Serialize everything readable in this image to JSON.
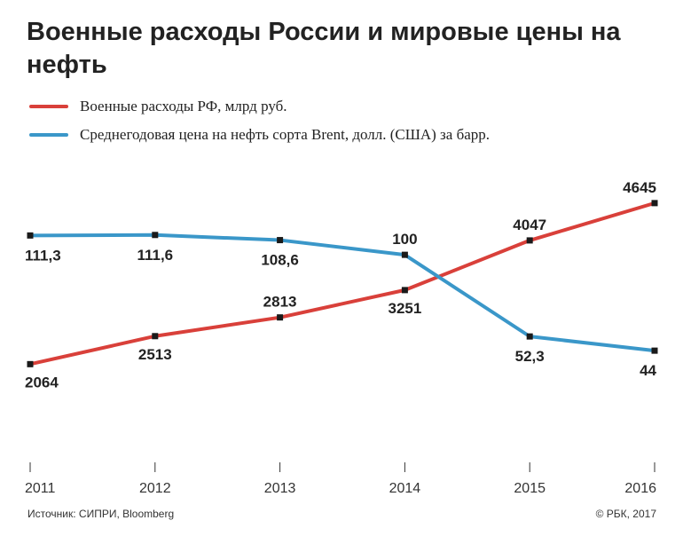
{
  "chart_data": {
    "type": "line",
    "title": "Военные расходы России и мировые цены на нефть",
    "categories": [
      "2011",
      "2012",
      "2013",
      "2014",
      "2015",
      "2016"
    ],
    "series": [
      {
        "name": "Военные расходы РФ, млрд руб.",
        "color": "#d9403a",
        "values": [
          2064,
          2513,
          2813,
          3251,
          4047,
          4645
        ],
        "labels": [
          "2064",
          "2513",
          "2813",
          "3251",
          "4047",
          "4645"
        ]
      },
      {
        "name": "Среднегодовая цена на нефть сорта Brent, долл. (США) за барр.",
        "color": "#3a97c9",
        "values": [
          111.3,
          111.6,
          108.6,
          100,
          52.3,
          44
        ],
        "labels": [
          "111,3",
          "111,6",
          "108,6",
          "100",
          "52,3",
          "44"
        ]
      }
    ],
    "grid": false,
    "legend": "top-left"
  },
  "footer": {
    "source": "Источник: СИПРИ, Bloomberg",
    "copyright": "© РБК, 2017"
  }
}
